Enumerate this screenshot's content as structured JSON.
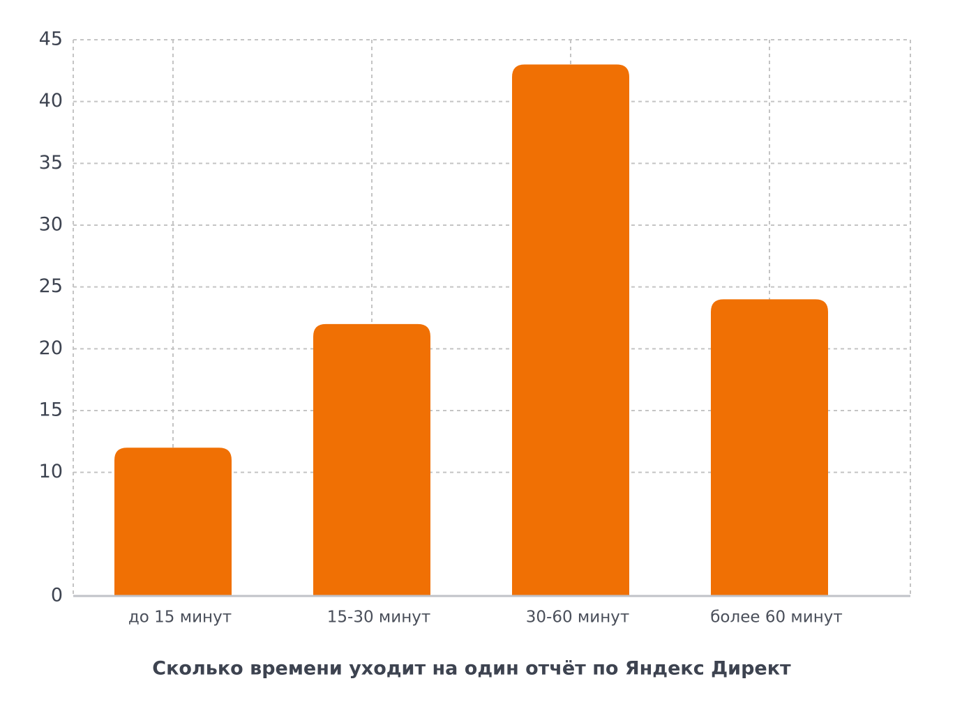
{
  "chart_data": {
    "type": "bar",
    "title": "Сколько времени уходит на один отчёт по Яндекс Директ",
    "categories": [
      "до 15 минут",
      "15-30 минут",
      "30-60 минут",
      "более 60 минут"
    ],
    "values": [
      12,
      22,
      43,
      24
    ],
    "color": "#f07004",
    "ylim": [
      0,
      45
    ],
    "yticks": [
      0,
      10,
      15,
      20,
      25,
      30,
      35,
      40,
      45
    ],
    "grid": true
  }
}
